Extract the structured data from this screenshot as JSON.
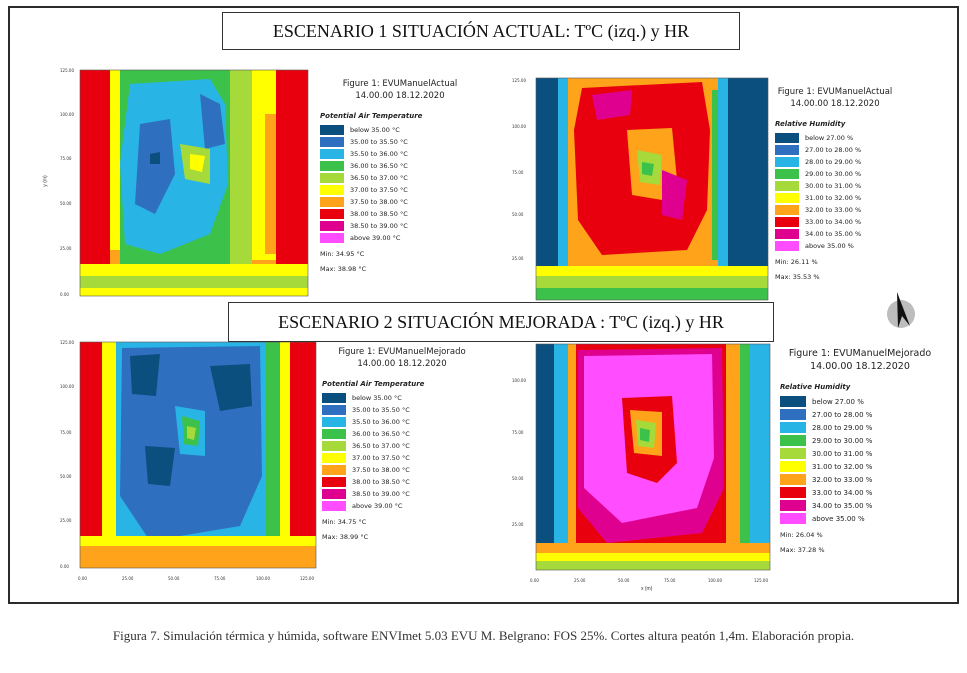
{
  "titles": {
    "scenario1": "ESCENARIO 1 SITUACIÓN ACTUAL: TºC (izq.) y HR",
    "scenario2": "ESCENARIO 2 SITUACIÓN MEJORADA : TºC (izq.) y HR"
  },
  "caption": "Figura 7. Simulación térmica y húmida, software ENVImet 5.03 EVU M. Belgrano: FOS 25%. Cortes altura peatón 1,4m. Elaboración propia.",
  "axis": {
    "y_label": "y (m)",
    "x_label": "x (m)",
    "y_ticks": [
      "125.00",
      "100.00",
      "75.00",
      "50.00",
      "25.00",
      "0.00"
    ],
    "x_ticks": [
      "0.00",
      "25.00",
      "50.00",
      "75.00",
      "100.00",
      "125.00"
    ]
  },
  "temp_legend": {
    "subtitle": "Potential Air Temperature",
    "items": [
      {
        "label": "below 35.00 °C",
        "color": "#0a4f7e"
      },
      {
        "label": "35.00 to 35.50 °C",
        "color": "#2f6fbf"
      },
      {
        "label": "35.50 to 36.00 °C",
        "color": "#29b4e6"
      },
      {
        "label": "36.00 to 36.50 °C",
        "color": "#3cc24a"
      },
      {
        "label": "36.50 to 37.00 °C",
        "color": "#a6d93a"
      },
      {
        "label": "37.00 to 37.50 °C",
        "color": "#ffff00"
      },
      {
        "label": "37.50 to 38.00 °C",
        "color": "#ffa31a"
      },
      {
        "label": "38.00 to 38.50 °C",
        "color": "#e8000e"
      },
      {
        "label": "38.50 to 39.00 °C",
        "color": "#e00090"
      },
      {
        "label": "above 39.00 °C",
        "color": "#ff4dff"
      }
    ]
  },
  "hum_legend": {
    "subtitle": "Relative Humidity",
    "items": [
      {
        "label": "below 27.00 %",
        "color": "#0a4f7e"
      },
      {
        "label": "27.00 to 28.00 %",
        "color": "#2f6fbf"
      },
      {
        "label": "28.00 to 29.00 %",
        "color": "#29b4e6"
      },
      {
        "label": "29.00 to 30.00 %",
        "color": "#3cc24a"
      },
      {
        "label": "30.00 to 31.00 %",
        "color": "#a6d93a"
      },
      {
        "label": "31.00 to 32.00 %",
        "color": "#ffff00"
      },
      {
        "label": "32.00 to 33.00 %",
        "color": "#ffa31a"
      },
      {
        "label": "33.00 to 34.00 %",
        "color": "#e8000e"
      },
      {
        "label": "34.00 to 35.00 %",
        "color": "#e00090"
      },
      {
        "label": "above 35.00 %",
        "color": "#ff4dff"
      }
    ]
  },
  "panels": {
    "s1_temp": {
      "figure": "Figure 1: EVUManuelActual",
      "datetime": "14.00.00 18.12.2020",
      "min": "Min: 34.95 °C",
      "max": "Max: 38.98 °C"
    },
    "s1_hum": {
      "figure": "Figure 1: EVUManuelActual",
      "datetime": "14.00.00 18.12.2020",
      "min": "Min: 26.11 %",
      "max": "Max: 35.53 %"
    },
    "s2_temp": {
      "figure": "Figure 1: EVUManuelMejorado",
      "datetime": "14.00.00 18.12.2020",
      "min": "Min: 34.75 °C",
      "max": "Max: 38.99 °C"
    },
    "s2_hum": {
      "figure": "Figure 1: EVUManuelMejorado",
      "datetime": "14.00.00 18.12.2020",
      "min": "Min: 26.04 %",
      "max": "Max: 37.28 %"
    }
  },
  "compass_icon": "north-arrow-icon"
}
